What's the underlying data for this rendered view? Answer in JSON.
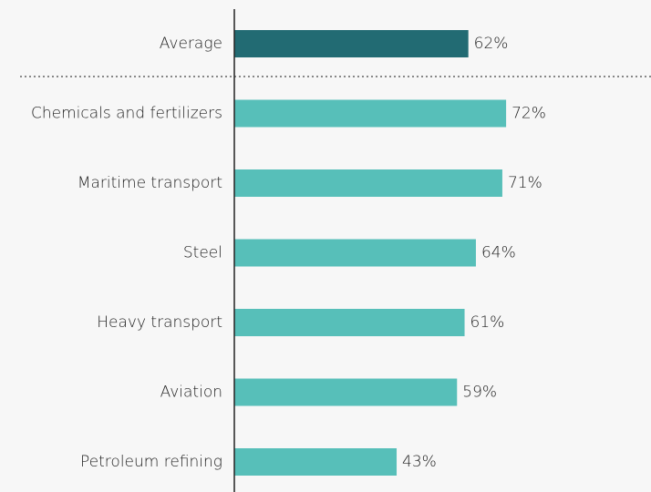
{
  "chart_data": {
    "type": "bar",
    "categories": [
      "Average",
      "Chemicals and fertilizers",
      "Maritime transport",
      "Steel",
      "Heavy transport",
      "Aviation",
      "Petroleum refining"
    ],
    "values": [
      62,
      72,
      71,
      64,
      61,
      59,
      43
    ],
    "value_labels": [
      "62%",
      "72%",
      "71%",
      "64%",
      "61%",
      "59%",
      "43%"
    ],
    "colors": [
      "#226b73",
      "#57bfb9",
      "#57bfb9",
      "#57bfb9",
      "#57bfb9",
      "#57bfb9",
      "#57bfb9"
    ]
  }
}
